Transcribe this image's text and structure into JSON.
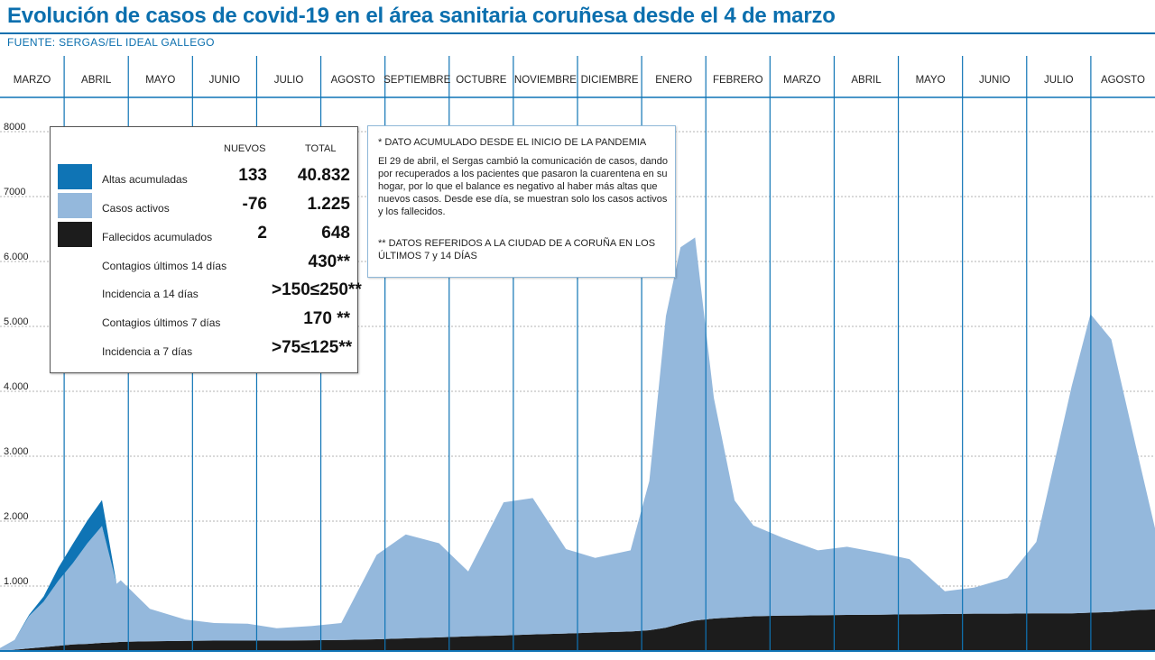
{
  "title": "Evolución de casos de covid-19 en el área sanitaria coruñesa desde el 4 de marzo",
  "source": "FUENTE: SERGAS/EL IDEAL GALLEGO",
  "colors": {
    "altas": "#0f74b5",
    "activos": "#94b8dc",
    "fallecidos": "#1c1c1c",
    "accent": "#0b6fae",
    "separator": "#0f74b5"
  },
  "chart_data": {
    "type": "area",
    "stacked": true,
    "ylim": [
      0,
      8000
    ],
    "yticks": [
      {
        "value": 1000,
        "label": "1.000"
      },
      {
        "value": 2000,
        "label": "2.000"
      },
      {
        "value": 3000,
        "label": "3.000"
      },
      {
        "value": 4000,
        "label": "4.000"
      },
      {
        "value": 5000,
        "label": "5.000"
      },
      {
        "value": 6000,
        "label": "6.000"
      },
      {
        "value": 7000,
        "label": "7000"
      },
      {
        "value": 8000,
        "label": "8000"
      }
    ],
    "grid": true,
    "months": [
      "MARZO",
      "ABRIL",
      "MAYO",
      "JUNIO",
      "JULIO",
      "AGOSTO",
      "SEPTIEMBRE",
      "OCTUBRE",
      "NOVIEMBRE",
      "DICIEMBRE",
      "ENERO",
      "FEBRERO",
      "MARZO",
      "ABRIL",
      "MAYO",
      "JUNIO",
      "JULIO",
      "AGOSTO"
    ],
    "x": [
      "2020-03-04",
      "2020-03-11",
      "2020-03-18",
      "2020-03-25",
      "2020-04-01",
      "2020-04-08",
      "2020-04-15",
      "2020-04-22",
      "2020-04-29",
      "2020-05-01",
      "2020-05-15",
      "2020-06-01",
      "2020-06-15",
      "2020-07-01",
      "2020-07-15",
      "2020-08-01",
      "2020-08-15",
      "2020-09-01",
      "2020-09-15",
      "2020-10-01",
      "2020-10-15",
      "2020-11-01",
      "2020-11-15",
      "2020-12-01",
      "2020-12-15",
      "2021-01-01",
      "2021-01-10",
      "2021-01-18",
      "2021-01-25",
      "2021-02-01",
      "2021-02-10",
      "2021-02-20",
      "2021-03-01",
      "2021-03-15",
      "2021-04-01",
      "2021-04-15",
      "2021-05-01",
      "2021-05-15",
      "2021-06-01",
      "2021-06-15",
      "2021-07-01",
      "2021-07-15",
      "2021-08-01",
      "2021-08-10",
      "2021-08-20",
      "2021-09-01",
      "2021-09-10"
    ],
    "series": [
      {
        "name": "Fallecidos acumulados",
        "values": [
          5,
          20,
          40,
          60,
          80,
          100,
          110,
          125,
          135,
          140,
          150,
          155,
          160,
          160,
          160,
          165,
          170,
          180,
          195,
          210,
          225,
          240,
          255,
          270,
          285,
          300,
          320,
          360,
          420,
          470,
          500,
          520,
          535,
          545,
          550,
          555,
          560,
          565,
          570,
          575,
          575,
          580,
          580,
          590,
          600,
          630,
          640
        ]
      },
      {
        "name": "Casos activos",
        "values": [
          40,
          150,
          500,
          700,
          1000,
          1250,
          1550,
          1800,
          900,
          950,
          500,
          330,
          270,
          260,
          190,
          220,
          260,
          1300,
          1600,
          1450,
          1000,
          2050,
          2100,
          1300,
          1150,
          1250,
          2300,
          4800,
          5800,
          5900,
          3400,
          1800,
          1400,
          1200,
          1000,
          1050,
          950,
          850,
          350,
          400,
          550,
          1100,
          3500,
          4600,
          4200,
          2500,
          1250
        ]
      },
      {
        "name": "Altas acumuladas",
        "values": [
          0,
          0,
          20,
          80,
          200,
          300,
          350,
          400,
          0,
          0,
          0,
          0,
          0,
          0,
          0,
          0,
          0,
          0,
          0,
          0,
          0,
          0,
          0,
          0,
          0,
          0,
          0,
          0,
          0,
          0,
          0,
          0,
          0,
          0,
          0,
          0,
          0,
          0,
          0,
          0,
          0,
          0,
          0,
          0,
          0,
          0,
          0
        ]
      }
    ]
  },
  "legend": {
    "head_new": "NUEVOS",
    "head_total": "TOTAL",
    "rows": [
      {
        "label": "Altas acumuladas",
        "nuevos": "133",
        "total": "40.832"
      },
      {
        "label": "Casos activos",
        "nuevos": "-76",
        "total": "1.225"
      },
      {
        "label": "Fallecidos acumulados",
        "nuevos": "2",
        "total": "648"
      },
      {
        "label": "Contagios últimos 14 días",
        "nuevos": "",
        "total": "430**"
      },
      {
        "label": "Incidencia a 14 días",
        "nuevos": "",
        "total": ">150≤250**"
      },
      {
        "label": "Contagios últimos 7 días",
        "nuevos": "",
        "total": "170 **"
      },
      {
        "label": "Incidencia a 7 días",
        "nuevos": "",
        "total": ">75≤125**"
      }
    ]
  },
  "notes": {
    "n1": "* DATO ACUMULADO DESDE EL INICIO DE LA PANDEMIA",
    "n2": "El 29 de abril, el Sergas cambió la comunicación de casos, dando por recuperados a los pacientes que pasaron la cuarentena en su hogar, por lo que el balance es negativo al haber más altas que nuevos casos. Desde ese día, se muestran solo los casos activos y los fallecidos.",
    "n3": "** DATOS REFERIDOS A LA CIUDAD DE A CORUÑA EN LOS ÚLTIMOS 7 y 14 DÍAS"
  }
}
